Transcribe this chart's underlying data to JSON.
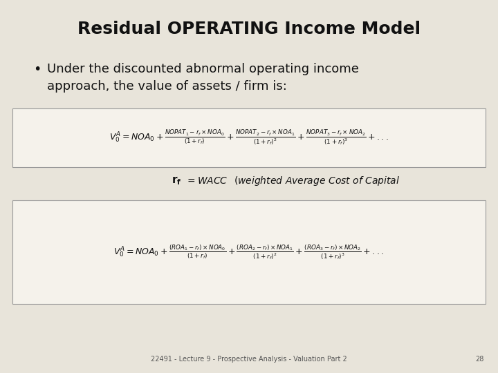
{
  "background_color": "#e8e4da",
  "title": "Residual OPERATING Income Model",
  "title_fontsize": 18,
  "bullet_text_line1": "Under the discounted abnormal operating income",
  "bullet_text_line2": "approach, the value of assets / firm is:",
  "bullet_fontsize": 13,
  "footer_text": "22491 - Lecture 9 - Prospective Analysis - Valuation Part 2",
  "page_number": "28",
  "footer_fontsize": 7,
  "box_facecolor": "#f5f2eb",
  "box_edgecolor": "#999999",
  "text_color": "#111111"
}
